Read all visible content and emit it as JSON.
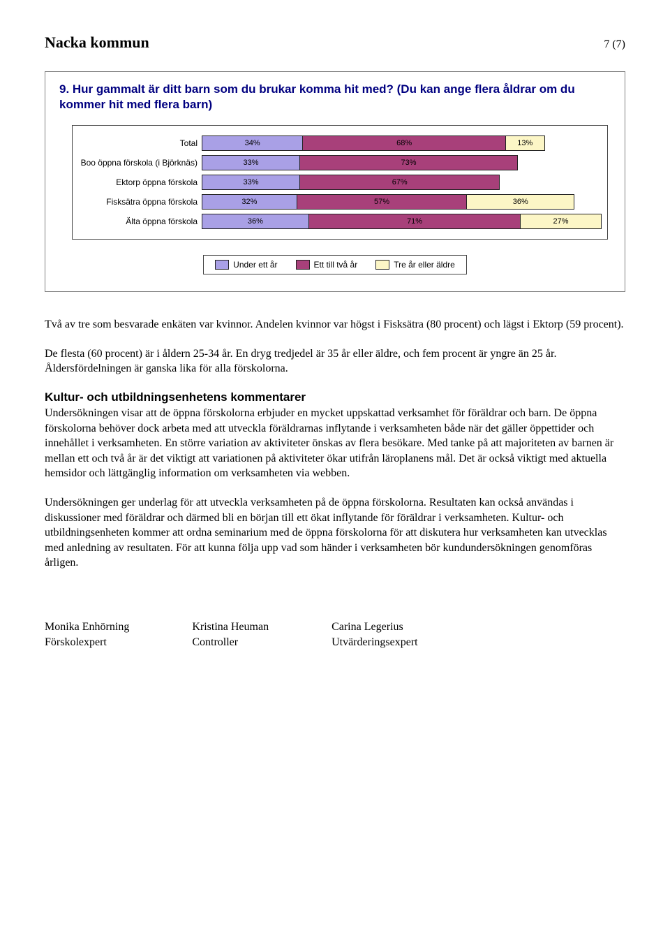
{
  "header": {
    "doc_title": "Nacka kommun",
    "page_label": "7 (7)"
  },
  "chart": {
    "type": "stacked-bar-horizontal",
    "title": "9. Hur gammalt är ditt barn som du brukar komma hit med? (Du kan ange flera åldrar om du kommer hit med flera barn)",
    "colors": {
      "seg1": "#a9a0e6",
      "seg2": "#a8407a",
      "seg3": "#fcf6c6",
      "border": "#444444"
    },
    "legend": [
      {
        "label": "Under ett år",
        "color_key": "seg1"
      },
      {
        "label": "Ett till två år",
        "color_key": "seg2"
      },
      {
        "label": "Tre år eller äldre",
        "color_key": "seg3"
      }
    ],
    "xmax": 100,
    "rows": [
      {
        "category": "Total",
        "values": [
          34,
          68,
          13
        ],
        "labels": [
          "34%",
          "68%",
          "13%"
        ]
      },
      {
        "category": "Boo öppna förskola (i Björknäs)",
        "values": [
          33,
          73,
          0
        ],
        "labels": [
          "33%",
          "73%",
          ""
        ]
      },
      {
        "category": "Ektorp öppna förskola",
        "values": [
          33,
          67,
          0
        ],
        "labels": [
          "33%",
          "67%",
          ""
        ]
      },
      {
        "category": "Fisksätra öppna förskola",
        "values": [
          32,
          57,
          36
        ],
        "labels": [
          "32%",
          "57%",
          "36%"
        ]
      },
      {
        "category": "Älta öppna förskola",
        "values": [
          36,
          71,
          27
        ],
        "labels": [
          "36%",
          "71%",
          "27%"
        ]
      }
    ]
  },
  "body": {
    "p1": "Två av tre som besvarade enkäten var kvinnor. Andelen kvinnor var högst i Fisksätra (80 procent) och lägst i Ektorp (59 procent).",
    "p2": "De flesta (60 procent) är i åldern 25-34 år. En dryg tredjedel är 35 år eller äldre, och fem procent är yngre än 25 år. Åldersfördelningen är ganska lika för alla förskolorna.",
    "section_heading": "Kultur- och utbildningsenhetens kommentarer",
    "p3": "Undersökningen visar att de öppna förskolorna erbjuder en mycket uppskattad verksamhet för föräldrar och barn. De öppna förskolorna behöver dock arbeta med att utveckla föräldrarnas inflytande i verksamheten både när det gäller öppettider och innehållet i verksamheten. En större variation av aktiviteter önskas av flera besökare. Med tanke på att majoriteten av barnen är mellan ett och två år är det viktigt att variationen på aktiviteter ökar utifrån läroplanens mål. Det är också viktigt med aktuella hemsidor och lättgänglig information om verksamheten via webben.",
    "p4": "Undersökningen ger underlag för att utveckla verksamheten på de öppna förskolorna. Resultaten kan också användas i diskussioner med föräldrar och därmed bli en början till ett ökat inflytande för föräldrar i verksamheten.  Kultur- och utbildningsenheten kommer att ordna seminarium med de öppna förskolorna för att diskutera hur verksamheten kan utvecklas med anledning av resultaten.  För att kunna följa upp vad som händer i verksamheten bör kundundersökningen genomföras årligen."
  },
  "signatures": [
    {
      "name": "Monika Enhörning",
      "title": "Förskolexpert"
    },
    {
      "name": "Kristina Heuman",
      "title": "Controller"
    },
    {
      "name": "Carina Legerius",
      "title": "Utvärderingsexpert"
    }
  ]
}
